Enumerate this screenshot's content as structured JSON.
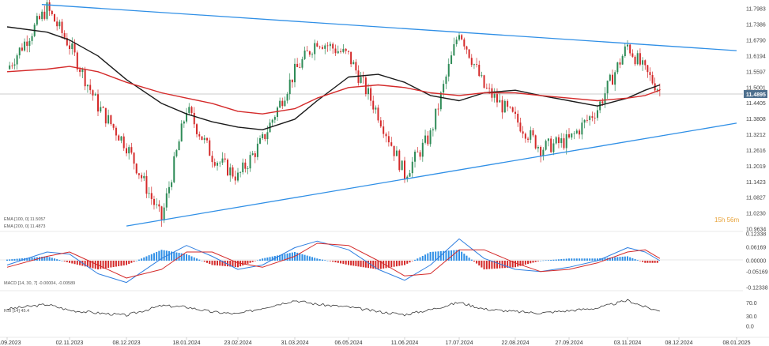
{
  "chart_data": [
    {
      "type": "line",
      "panel": "price",
      "instrument_label": "",
      "y_ticks": [
        "11.7983",
        "11.7386",
        "11.6790",
        "11.6194",
        "11.5597",
        "11.5001",
        "11.4405",
        "11.3808",
        "11.3212",
        "11.2616",
        "11.2019",
        "11.1423",
        "11.0827",
        "11.0230",
        "10.9634"
      ],
      "ylim": [
        10.9634,
        11.82
      ],
      "current_price": "11.4895",
      "candle_timer": "15h 56m",
      "legend": [
        "EMA [100, 0] 11.5057",
        "EMA [200, 0] 11.4873"
      ],
      "x": [
        "2023-09-27",
        "2023-10-20",
        "2023-11-02",
        "2023-11-20",
        "2023-12-08",
        "2024-01-01",
        "2024-01-18",
        "2024-02-05",
        "2024-02-23",
        "2024-03-10",
        "2024-03-31",
        "2024-04-15",
        "2024-05-06",
        "2024-05-25",
        "2024-06-11",
        "2024-06-28",
        "2024-07-17",
        "2024-08-02",
        "2024-08-22",
        "2024-09-08",
        "2024-09-27",
        "2024-10-15",
        "2024-11-03",
        "2024-11-15",
        "2024-11-25"
      ],
      "series": [
        {
          "name": "",
          "color": "#2e8b57",
          "values": [
            11.57,
            11.8,
            11.66,
            11.43,
            11.28,
            11.0,
            11.42,
            11.24,
            11.16,
            11.3,
            11.56,
            11.68,
            11.62,
            11.4,
            11.17,
            11.32,
            11.72,
            11.5,
            11.38,
            11.27,
            11.3,
            11.42,
            11.66,
            11.56,
            11.49
          ]
        },
        {
          "name": "EMA [100, 0]",
          "color": "#1a1a1a",
          "values": [
            11.73,
            11.71,
            11.68,
            11.62,
            11.53,
            11.44,
            11.4,
            11.37,
            11.35,
            11.34,
            11.38,
            11.45,
            11.54,
            11.55,
            11.52,
            11.47,
            11.45,
            11.48,
            11.49,
            11.47,
            11.45,
            11.43,
            11.46,
            11.49,
            11.51
          ]
        },
        {
          "name": "EMA [200, 0]",
          "color": "#d42a2a",
          "values": [
            11.56,
            11.57,
            11.58,
            11.56,
            11.52,
            11.48,
            11.46,
            11.44,
            11.41,
            11.4,
            11.42,
            11.46,
            11.5,
            11.51,
            11.5,
            11.48,
            11.47,
            11.48,
            11.48,
            11.47,
            11.46,
            11.45,
            11.46,
            11.47,
            11.49
          ]
        }
      ],
      "trendlines": [
        {
          "x": [
            "2023-10-17",
            "2025-01-08"
          ],
          "y": [
            11.815,
            11.64
          ],
          "color": "#2f8fe6"
        },
        {
          "x": [
            "2023-12-08",
            "2025-01-08"
          ],
          "y": [
            10.975,
            11.365
          ],
          "color": "#2f8fe6"
        }
      ]
    },
    {
      "type": "bar",
      "panel": "macd",
      "legend": "MACD [14, 30, 7] -0.00004, -0.00589",
      "y_ticks": [
        "0.12338",
        "0.06169",
        "0.00000",
        "-0.05169",
        "-0.12338"
      ],
      "ylim": [
        -0.12338,
        0.12338
      ],
      "x": [
        "2023-09-27",
        "2023-10-20",
        "2023-11-02",
        "2023-11-20",
        "2023-12-08",
        "2024-01-01",
        "2024-01-18",
        "2024-02-05",
        "2024-02-23",
        "2024-03-10",
        "2024-03-31",
        "2024-04-15",
        "2024-05-06",
        "2024-05-25",
        "2024-06-11",
        "2024-06-28",
        "2024-07-17",
        "2024-08-02",
        "2024-08-22",
        "2024-09-08",
        "2024-09-27",
        "2024-10-15",
        "2024-11-03",
        "2024-11-15",
        "2024-11-25"
      ],
      "series": [
        {
          "name": "",
          "color": "#2f7fe0",
          "values": [
            -0.02,
            0.04,
            0.03,
            -0.06,
            -0.1,
            0.01,
            0.07,
            0.02,
            -0.04,
            -0.02,
            0.06,
            0.09,
            0.05,
            -0.04,
            -0.09,
            -0.02,
            0.1,
            0.01,
            -0.04,
            -0.05,
            -0.03,
            0.0,
            0.06,
            0.04,
            0.0
          ]
        },
        {
          "name": "",
          "color": "#d42a2a",
          "values": [
            -0.03,
            0.02,
            0.04,
            -0.02,
            -0.08,
            -0.04,
            0.04,
            0.04,
            -0.01,
            -0.03,
            0.02,
            0.08,
            0.07,
            0.0,
            -0.07,
            -0.06,
            0.05,
            0.05,
            -0.01,
            -0.05,
            -0.04,
            -0.01,
            0.04,
            0.05,
            0.01
          ]
        },
        {
          "name": "",
          "color": "#2f7fe0",
          "values": [
            0.005,
            0.02,
            -0.01,
            -0.04,
            -0.02,
            0.05,
            0.03,
            -0.02,
            -0.03,
            0.01,
            0.04,
            0.01,
            -0.02,
            -0.04,
            -0.02,
            0.04,
            0.05,
            -0.04,
            -0.03,
            0.0,
            0.01,
            0.01,
            0.02,
            -0.01,
            -0.01
          ]
        }
      ]
    },
    {
      "type": "line",
      "panel": "rsi",
      "legend": "RSI [14] 45.4",
      "y_ticks": [
        "70.0",
        "30.0",
        "0.0"
      ],
      "ylim": [
        0,
        100
      ],
      "x": [
        "2023-09-27",
        "2023-10-20",
        "2023-11-02",
        "2023-11-20",
        "2023-12-08",
        "2024-01-01",
        "2024-01-18",
        "2024-02-05",
        "2024-02-23",
        "2024-03-10",
        "2024-03-31",
        "2024-04-15",
        "2024-05-06",
        "2024-05-25",
        "2024-06-11",
        "2024-06-28",
        "2024-07-17",
        "2024-08-02",
        "2024-08-22",
        "2024-09-08",
        "2024-09-27",
        "2024-10-15",
        "2024-11-03",
        "2024-11-15",
        "2024-11-25"
      ],
      "series": [
        {
          "name": "",
          "color": "#3a3a3a",
          "values": [
            52,
            66,
            48,
            40,
            33,
            62,
            58,
            43,
            37,
            55,
            78,
            66,
            58,
            44,
            35,
            50,
            72,
            52,
            44,
            40,
            47,
            55,
            78,
            58,
            45.4
          ]
        }
      ]
    }
  ],
  "x_axis": {
    "labels": [
      "27.09.2023",
      "02.11.2023",
      "08.12.2023",
      "18.01.2024",
      "23.02.2024",
      "31.03.2024",
      "06.05.2024",
      "11.06.2024",
      "17.07.2024",
      "22.08.2024",
      "27.09.2024",
      "03.11.2024",
      "08.12.2024",
      "08.01.2025"
    ],
    "dates": [
      "2023-09-27",
      "2023-11-02",
      "2023-12-08",
      "2024-01-18",
      "2024-02-23",
      "2024-03-31",
      "2024-05-06",
      "2024-06-11",
      "2024-07-17",
      "2024-08-22",
      "2024-09-27",
      "2024-11-03",
      "2024-12-08",
      "2025-01-08"
    ]
  },
  "colors": {
    "up": "#2e8b57",
    "down": "#d42a2a",
    "ema100": "#1a1a1a",
    "ema200": "#d42a2a",
    "trend": "#2f8fe6",
    "price_box": "#4d6f8d",
    "timer": "#e8a33a"
  }
}
